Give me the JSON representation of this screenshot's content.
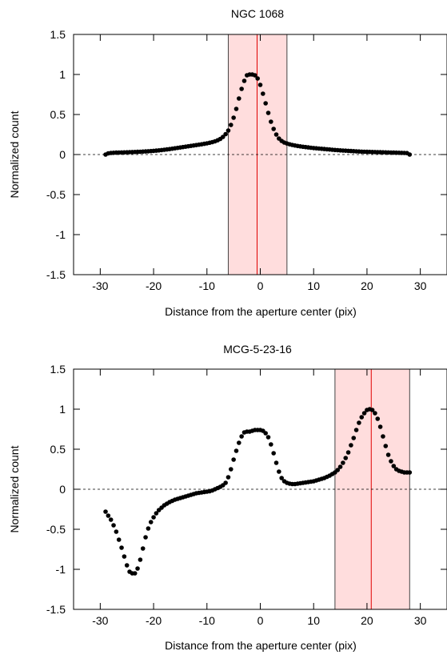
{
  "chart_data": [
    {
      "type": "scatter",
      "title": "NGC 1068",
      "xlabel": "Distance from the aperture center (pix)",
      "ylabel": "Normalized count",
      "xlim": [
        -35,
        35
      ],
      "ylim": [
        -1.5,
        1.5
      ],
      "xticks": [
        -30,
        -20,
        -10,
        0,
        10,
        20,
        30
      ],
      "yticks": [
        -1.5,
        -1,
        -0.5,
        0,
        0.5,
        1,
        1.5
      ],
      "grid": false,
      "zero_line": {
        "y": 0,
        "style": "dashed"
      },
      "aperture": {
        "x_start": -6,
        "x_end": 5,
        "center": -0.6,
        "fill_color": "#ffdddd",
        "center_color": "#e00000"
      },
      "marker_color": "#000000",
      "series": [
        {
          "x": [
            -29.0,
            -28.5,
            -28.0,
            -27.5,
            -27.0,
            -26.5,
            -26.0,
            -25.5,
            -25.0,
            -24.5,
            -24.0,
            -23.5,
            -23.0,
            -22.5,
            -22.0,
            -21.5,
            -21.0,
            -20.5,
            -20.0,
            -19.5,
            -19.0,
            -18.5,
            -18.0,
            -17.5,
            -17.0,
            -16.5,
            -16.0,
            -15.5,
            -15.0,
            -14.5,
            -14.0,
            -13.5,
            -13.0,
            -12.5,
            -12.0,
            -11.5,
            -11.0,
            -10.5,
            -10.0,
            -9.5,
            -9.0,
            -8.5,
            -8.0,
            -7.5,
            -7.0,
            -6.5,
            -6.0,
            -5.5,
            -5.0,
            -4.5,
            -4.0,
            -3.5,
            -3.0,
            -2.5,
            -2.0,
            -1.5,
            -1.0,
            -0.5,
            0.0,
            0.5,
            1.0,
            1.5,
            2.0,
            2.5,
            3.0,
            3.5,
            4.0,
            4.5,
            5.0,
            5.5,
            6.0,
            6.5,
            7.0,
            7.5,
            8.0,
            8.5,
            9.0,
            9.5,
            10.0,
            10.5,
            11.0,
            11.5,
            12.0,
            12.5,
            13.0,
            13.5,
            14.0,
            14.5,
            15.0,
            15.5,
            16.0,
            16.5,
            17.0,
            17.5,
            18.0,
            18.5,
            19.0,
            19.5,
            20.0,
            20.5,
            21.0,
            21.5,
            22.0,
            22.5,
            23.0,
            23.5,
            24.0,
            24.5,
            25.0,
            25.5,
            26.0,
            26.5,
            27.0,
            27.5,
            28.0
          ],
          "y": [
            0.0,
            0.015,
            0.02,
            0.022,
            0.024,
            0.025,
            0.026,
            0.027,
            0.028,
            0.03,
            0.031,
            0.032,
            0.034,
            0.035,
            0.037,
            0.039,
            0.041,
            0.043,
            0.046,
            0.049,
            0.052,
            0.056,
            0.06,
            0.064,
            0.068,
            0.073,
            0.078,
            0.083,
            0.088,
            0.093,
            0.098,
            0.103,
            0.108,
            0.113,
            0.118,
            0.123,
            0.128,
            0.134,
            0.14,
            0.147,
            0.155,
            0.165,
            0.178,
            0.195,
            0.22,
            0.255,
            0.3,
            0.37,
            0.46,
            0.57,
            0.7,
            0.82,
            0.92,
            0.99,
            1.0,
            1.0,
            0.99,
            0.95,
            0.87,
            0.76,
            0.64,
            0.52,
            0.41,
            0.32,
            0.25,
            0.2,
            0.17,
            0.15,
            0.138,
            0.128,
            0.12,
            0.113,
            0.107,
            0.102,
            0.097,
            0.093,
            0.089,
            0.085,
            0.081,
            0.078,
            0.075,
            0.072,
            0.069,
            0.066,
            0.063,
            0.06,
            0.057,
            0.055,
            0.052,
            0.05,
            0.048,
            0.046,
            0.044,
            0.042,
            0.04,
            0.038,
            0.036,
            0.035,
            0.034,
            0.033,
            0.032,
            0.031,
            0.03,
            0.029,
            0.028,
            0.027,
            0.026,
            0.025,
            0.024,
            0.023,
            0.022,
            0.021,
            0.02,
            0.018,
            0.0
          ]
        }
      ]
    },
    {
      "type": "scatter",
      "title": "MCG-5-23-16",
      "xlabel": "Distance from the aperture center (pix)",
      "ylabel": "Normalized count",
      "xlim": [
        -35,
        35
      ],
      "ylim": [
        -1.5,
        1.5
      ],
      "xticks": [
        -30,
        -20,
        -10,
        0,
        10,
        20,
        30
      ],
      "yticks": [
        -1.5,
        -1,
        -0.5,
        0,
        0.5,
        1,
        1.5
      ],
      "grid": false,
      "zero_line": {
        "y": 0,
        "style": "dashed"
      },
      "aperture": {
        "x_start": 14,
        "x_end": 28,
        "center": 20.8,
        "fill_color": "#ffdddd",
        "center_color": "#e00000"
      },
      "marker_color": "#000000",
      "series": [
        {
          "x": [
            -29.0,
            -28.5,
            -28.0,
            -27.5,
            -27.0,
            -26.5,
            -26.0,
            -25.5,
            -25.0,
            -24.5,
            -24.0,
            -23.5,
            -23.0,
            -22.5,
            -22.0,
            -21.5,
            -21.0,
            -20.5,
            -20.0,
            -19.5,
            -19.0,
            -18.5,
            -18.0,
            -17.5,
            -17.0,
            -16.5,
            -16.0,
            -15.5,
            -15.0,
            -14.5,
            -14.0,
            -13.5,
            -13.0,
            -12.5,
            -12.0,
            -11.5,
            -11.0,
            -10.5,
            -10.0,
            -9.5,
            -9.0,
            -8.5,
            -8.0,
            -7.5,
            -7.0,
            -6.5,
            -6.0,
            -5.5,
            -5.0,
            -4.5,
            -4.0,
            -3.5,
            -3.0,
            -2.5,
            -2.0,
            -1.5,
            -1.0,
            -0.5,
            0.0,
            0.5,
            1.0,
            1.5,
            2.0,
            2.5,
            3.0,
            3.5,
            4.0,
            4.5,
            5.0,
            5.5,
            6.0,
            6.5,
            7.0,
            7.5,
            8.0,
            8.5,
            9.0,
            9.5,
            10.0,
            10.5,
            11.0,
            11.5,
            12.0,
            12.5,
            13.0,
            13.5,
            14.0,
            14.5,
            15.0,
            15.5,
            16.0,
            16.5,
            17.0,
            17.5,
            18.0,
            18.5,
            19.0,
            19.5,
            20.0,
            20.5,
            21.0,
            21.5,
            22.0,
            22.5,
            23.0,
            23.5,
            24.0,
            24.5,
            25.0,
            25.5,
            26.0,
            26.5,
            27.0,
            27.5,
            28.0
          ],
          "y": [
            -0.28,
            -0.33,
            -0.38,
            -0.45,
            -0.53,
            -0.63,
            -0.73,
            -0.84,
            -0.95,
            -1.03,
            -1.05,
            -1.05,
            -0.99,
            -0.88,
            -0.74,
            -0.6,
            -0.49,
            -0.41,
            -0.35,
            -0.3,
            -0.26,
            -0.23,
            -0.2,
            -0.18,
            -0.16,
            -0.145,
            -0.13,
            -0.12,
            -0.11,
            -0.1,
            -0.09,
            -0.08,
            -0.07,
            -0.06,
            -0.05,
            -0.045,
            -0.04,
            -0.035,
            -0.03,
            -0.025,
            -0.015,
            0.0,
            0.015,
            0.03,
            0.05,
            0.08,
            0.15,
            0.25,
            0.37,
            0.48,
            0.58,
            0.66,
            0.71,
            0.72,
            0.72,
            0.73,
            0.74,
            0.74,
            0.74,
            0.73,
            0.7,
            0.65,
            0.56,
            0.45,
            0.33,
            0.22,
            0.14,
            0.1,
            0.08,
            0.07,
            0.065,
            0.065,
            0.07,
            0.075,
            0.08,
            0.085,
            0.09,
            0.095,
            0.1,
            0.11,
            0.12,
            0.13,
            0.14,
            0.155,
            0.17,
            0.19,
            0.21,
            0.24,
            0.28,
            0.33,
            0.39,
            0.46,
            0.55,
            0.64,
            0.74,
            0.83,
            0.9,
            0.95,
            0.99,
            1.0,
            0.99,
            0.95,
            0.88,
            0.78,
            0.66,
            0.54,
            0.43,
            0.35,
            0.29,
            0.25,
            0.23,
            0.22,
            0.21,
            0.21,
            0.21
          ]
        }
      ]
    }
  ]
}
